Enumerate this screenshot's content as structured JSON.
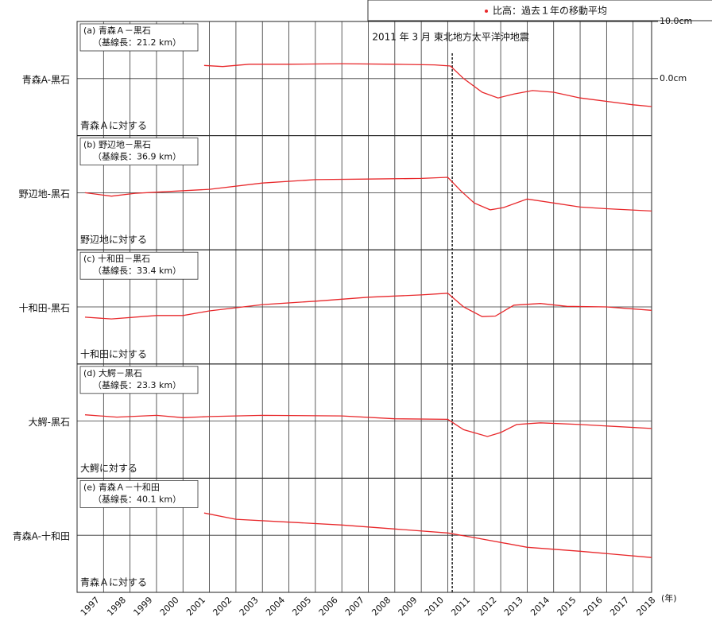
{
  "chart_data": [
    {
      "type": "line",
      "title": "(a) 青森Ａ－黒石",
      "subtitle": "（基線長：21.2 km）",
      "note": "青森Ａに対する",
      "ylabel": "青森A-黒石",
      "annotation": {
        "text": "2011 年 3 月  東北地方太平洋沖地震",
        "x": 2011.17
      },
      "xlim": [
        1997,
        2018.7
      ],
      "ylim": [
        -10,
        10
      ],
      "yticks": [
        {
          "value": 10,
          "label": "10.0cm"
        },
        {
          "value": 0,
          "label": "0.0cm"
        }
      ],
      "series": [
        {
          "name": "比高：過去１年の移動平均",
          "color": "#e8282b",
          "x": [
            2001.8,
            2002.5,
            2003.5,
            2005,
            2007,
            2009,
            2010.5,
            2011.1,
            2011.6,
            2012.3,
            2012.9,
            2013.5,
            2014.2,
            2015,
            2016,
            2017,
            2018,
            2018.7
          ],
          "values": [
            2.3,
            2.1,
            2.5,
            2.5,
            2.6,
            2.5,
            2.4,
            2.2,
            0,
            -2.4,
            -3.4,
            -2.7,
            -2.1,
            -2.4,
            -3.4,
            -4.0,
            -4.6,
            -4.9
          ]
        }
      ]
    },
    {
      "type": "line",
      "title": "(b) 野辺地－黒石",
      "subtitle": "（基線長：36.9 km）",
      "note": "野辺地に対する",
      "ylabel": "野辺地-黒石",
      "xlim": [
        1997,
        2018.7
      ],
      "ylim": [
        -10,
        10
      ],
      "series": [
        {
          "color": "#e8282b",
          "x": [
            1997.3,
            1998.3,
            1999.2,
            2000,
            2002,
            2004,
            2006,
            2008,
            2010,
            2011.0,
            2011.5,
            2012,
            2012.6,
            2013.1,
            2014,
            2015,
            2016,
            2017,
            2018.7
          ],
          "values": [
            0,
            -0.6,
            -0.1,
            0.1,
            0.6,
            1.7,
            2.3,
            2.4,
            2.5,
            2.7,
            0.3,
            -1.8,
            -3.0,
            -2.6,
            -1.1,
            -1.8,
            -2.5,
            -2.8,
            -3.2
          ]
        }
      ]
    },
    {
      "type": "line",
      "title": "(c) 十和田－黒石",
      "subtitle": "（基線長：33.4 km）",
      "note": "十和田に対する",
      "ylabel": "十和田-黒石",
      "xlim": [
        1997,
        2018.7
      ],
      "ylim": [
        -10,
        10
      ],
      "series": [
        {
          "color": "#e8282b",
          "x": [
            1997.3,
            1998.3,
            2000,
            2001,
            2002,
            2004,
            2006,
            2008,
            2010,
            2011,
            2011.6,
            2012.3,
            2012.8,
            2013.5,
            2014.5,
            2015.5,
            2017,
            2018.7
          ],
          "values": [
            -1.8,
            -2.1,
            -1.5,
            -1.5,
            -0.7,
            0.4,
            1.0,
            1.7,
            2.1,
            2.4,
            0,
            -1.7,
            -1.6,
            0.3,
            0.6,
            0.1,
            0,
            -0.6
          ]
        }
      ]
    },
    {
      "type": "line",
      "title": "(d) 大鰐－黒石",
      "subtitle": "（基線長：23.3 km）",
      "note": "大鰐に対する",
      "ylabel": "大鰐-黒石",
      "xlim": [
        1997,
        2018.7
      ],
      "ylim": [
        -10,
        10
      ],
      "series": [
        {
          "color": "#e8282b",
          "x": [
            1997.3,
            1998.5,
            2000,
            2001,
            2002,
            2004,
            2007,
            2009,
            2011,
            2011.6,
            2012.5,
            2013,
            2013.6,
            2014.5,
            2016,
            2018.7
          ],
          "values": [
            1.1,
            0.7,
            1.0,
            0.6,
            0.8,
            1.0,
            0.9,
            0.4,
            0.3,
            -1.5,
            -2.7,
            -2.0,
            -0.6,
            -0.3,
            -0.6,
            -1.3
          ]
        }
      ]
    },
    {
      "type": "line",
      "title": "(e) 青森Ａ－十和田",
      "subtitle": "（基線長：40.1 km）",
      "note": "青森Ａに対する",
      "ylabel": "青森A-十和田",
      "xlabel": "(年)",
      "xlim": [
        1997,
        2018.7
      ],
      "ylim": [
        -10,
        10
      ],
      "xticks": [
        1997,
        1998,
        1999,
        2000,
        2001,
        2002,
        2003,
        2004,
        2005,
        2006,
        2007,
        2008,
        2009,
        2010,
        2011,
        2012,
        2013,
        2014,
        2015,
        2016,
        2017,
        2018
      ],
      "series": [
        {
          "color": "#e8282b",
          "x": [
            2001.8,
            2003,
            2005,
            2007,
            2009,
            2011,
            2012,
            2014,
            2016,
            2018.7
          ],
          "values": [
            3.9,
            2.8,
            2.3,
            1.8,
            1.1,
            0.4,
            -0.4,
            -2.1,
            -2.8,
            -3.9
          ]
        }
      ]
    }
  ]
}
